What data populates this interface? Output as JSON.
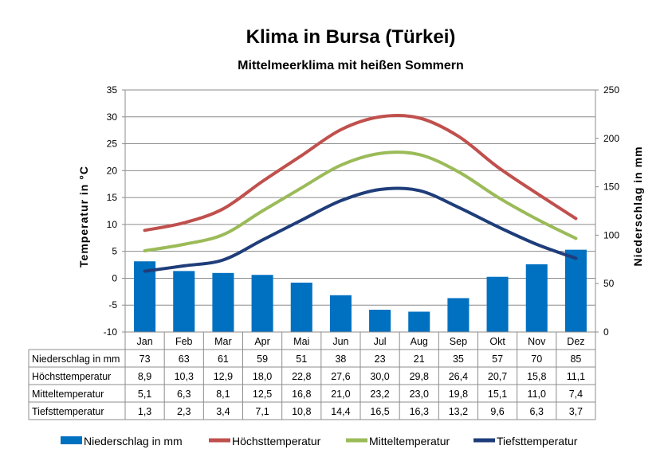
{
  "chart_data": {
    "type": "bar",
    "title": "Klima in Bursa (Türkei)",
    "subtitle": "Mittelmeerklima mit heißen Sommern",
    "ylabel_left": "Temperatur  in  °C",
    "ylabel_right": "Niederschlag  in  mm",
    "categories": [
      "Jan",
      "Feb",
      "Mar",
      "Apr",
      "Mai",
      "Jun",
      "Jul",
      "Aug",
      "Sep",
      "Okt",
      "Nov",
      "Dez"
    ],
    "ylim_left": [
      -10,
      35
    ],
    "yticks_left": [
      "-10",
      "-5",
      "0",
      "5",
      "10",
      "15",
      "20",
      "25",
      "30",
      "35"
    ],
    "ylim_right": [
      0,
      250
    ],
    "yticks_right": [
      "0",
      "50",
      "100",
      "150",
      "200",
      "250"
    ],
    "grid": true,
    "legend_position": "bottom",
    "series": [
      {
        "name": "Niederschlag in mm",
        "kind": "bar",
        "axis": "right",
        "color": "#0070C0",
        "values": [
          73,
          63,
          61,
          59,
          51,
          38,
          23,
          21,
          35,
          57,
          70,
          85
        ],
        "labels": [
          "73",
          "63",
          "61",
          "59",
          "51",
          "38",
          "23",
          "21",
          "35",
          "57",
          "70",
          "85"
        ]
      },
      {
        "name": "Höchsttemperatur",
        "kind": "line",
        "axis": "left",
        "color": "#C0504D",
        "values": [
          8.9,
          10.3,
          12.9,
          18.0,
          22.8,
          27.6,
          30.0,
          29.8,
          26.4,
          20.7,
          15.8,
          11.1
        ],
        "labels": [
          "8,9",
          "10,3",
          "12,9",
          "18,0",
          "22,8",
          "27,6",
          "30,0",
          "29,8",
          "26,4",
          "20,7",
          "15,8",
          "11,1"
        ]
      },
      {
        "name": "Mitteltemperatur",
        "kind": "line",
        "axis": "left",
        "color": "#9BBB59",
        "values": [
          5.1,
          6.3,
          8.1,
          12.5,
          16.8,
          21.0,
          23.2,
          23.0,
          19.8,
          15.1,
          11.0,
          7.4
        ],
        "labels": [
          "5,1",
          "6,3",
          "8,1",
          "12,5",
          "16,8",
          "21,0",
          "23,2",
          "23,0",
          "19,8",
          "15,1",
          "11,0",
          "7,4"
        ]
      },
      {
        "name": "Tiefsttemperatur",
        "kind": "line",
        "axis": "left",
        "color": "#1F3D7A",
        "values": [
          1.3,
          2.3,
          3.4,
          7.1,
          10.8,
          14.4,
          16.5,
          16.3,
          13.2,
          9.6,
          6.3,
          3.7
        ],
        "labels": [
          "1,3",
          "2,3",
          "3,4",
          "7,1",
          "10,8",
          "14,4",
          "16,5",
          "16,3",
          "13,2",
          "9,6",
          "6,3",
          "3,7"
        ]
      }
    ]
  }
}
